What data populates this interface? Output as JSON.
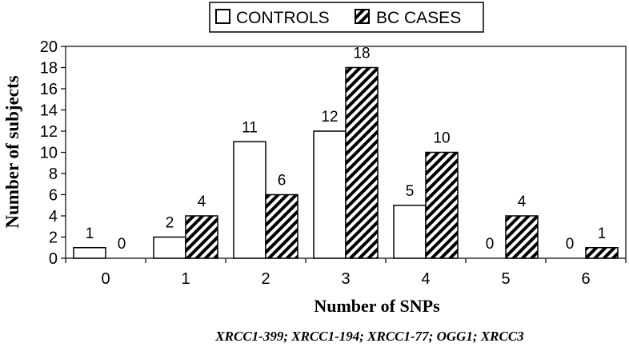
{
  "chart_data": {
    "type": "bar",
    "categories": [
      "0",
      "1",
      "2",
      "3",
      "4",
      "5",
      "6"
    ],
    "series": [
      {
        "name": "CONTROLS",
        "values": [
          1,
          2,
          11,
          12,
          5,
          0,
          0
        ],
        "fill": "#ffffff",
        "pattern": "none"
      },
      {
        "name": "BC CASES",
        "values": [
          0,
          4,
          6,
          18,
          10,
          4,
          1
        ],
        "fill": "#ffffff",
        "pattern": "diagonal-hatch"
      }
    ],
    "xlabel": "Number of SNPs",
    "ylabel": "Number of subjects",
    "note": "XRCC1-399; XRCC1-194; XRCC1-77; OGG1; XRCC3",
    "ylim": [
      0,
      20
    ],
    "yticks": [
      0,
      2,
      4,
      6,
      8,
      10,
      12,
      14,
      16,
      18,
      20
    ],
    "grid": false,
    "legend": "top-center",
    "data_labels": true
  }
}
